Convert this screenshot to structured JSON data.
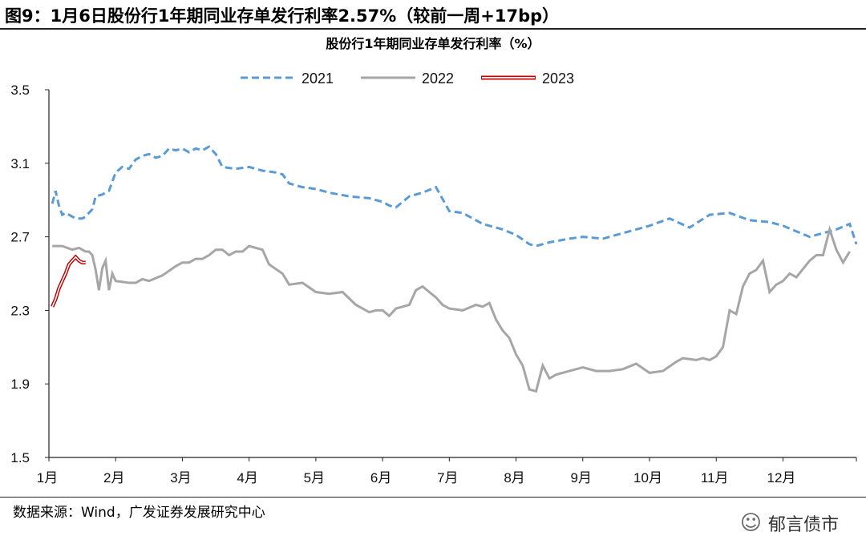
{
  "figure_title": "图9：1月6日股份行1年期同业存单发行利率2.57%（较前一周+17bp）",
  "source": "数据来源：Wind，广发证券发展研究中心",
  "watermark": "郁言债市",
  "watermark_icon": "wechat-icon",
  "chart_data": {
    "type": "line",
    "title": "股份行1年期同业存单发行利率（%）",
    "xlabel": "",
    "ylabel": "",
    "ylim": [
      1.5,
      3.5
    ],
    "yticks": [
      "3.5",
      "3.1",
      "2.7",
      "2.3",
      "1.9",
      "1.5"
    ],
    "ytick_values": [
      3.5,
      3.1,
      2.7,
      2.3,
      1.9,
      1.5
    ],
    "xticks": [
      "1月",
      "2月",
      "3月",
      "4月",
      "5月",
      "6月",
      "7月",
      "8月",
      "9月",
      "10月",
      "11月",
      "12月"
    ],
    "xlim": [
      1,
      13.1
    ],
    "grid": false,
    "legend_position": "top",
    "series": [
      {
        "name": "2021",
        "color": "#5b9bd5",
        "style": "dashed",
        "x": [
          1.05,
          1.1,
          1.15,
          1.2,
          1.25,
          1.3,
          1.4,
          1.5,
          1.55,
          1.6,
          1.65,
          1.7,
          1.8,
          1.9,
          2.0,
          2.1,
          2.2,
          2.3,
          2.4,
          2.5,
          2.6,
          2.7,
          2.8,
          2.9,
          3.0,
          3.1,
          3.2,
          3.3,
          3.4,
          3.5,
          3.6,
          3.8,
          4.0,
          4.2,
          4.4,
          4.5,
          4.6,
          4.8,
          5.0,
          5.2,
          5.5,
          5.8,
          6.0,
          6.1,
          6.2,
          6.4,
          6.6,
          6.8,
          7.0,
          7.2,
          7.5,
          7.8,
          8.0,
          8.2,
          8.3,
          8.5,
          8.8,
          9.0,
          9.3,
          9.5,
          9.8,
          10.0,
          10.3,
          10.6,
          10.9,
          11.2,
          11.5,
          11.8,
          12.0,
          12.2,
          12.4,
          12.6,
          12.8,
          13.0,
          13.1
        ],
        "y": [
          2.88,
          2.95,
          2.87,
          2.82,
          2.83,
          2.82,
          2.8,
          2.8,
          2.81,
          2.83,
          2.85,
          2.92,
          2.93,
          2.95,
          3.05,
          3.08,
          3.07,
          3.12,
          3.14,
          3.15,
          3.13,
          3.14,
          3.18,
          3.17,
          3.18,
          3.16,
          3.18,
          3.17,
          3.19,
          3.15,
          3.08,
          3.07,
          3.08,
          3.06,
          3.05,
          3.04,
          2.99,
          2.97,
          2.96,
          2.94,
          2.92,
          2.91,
          2.89,
          2.87,
          2.86,
          2.92,
          2.94,
          2.97,
          2.84,
          2.83,
          2.77,
          2.74,
          2.71,
          2.66,
          2.65,
          2.67,
          2.69,
          2.7,
          2.69,
          2.71,
          2.74,
          2.76,
          2.8,
          2.75,
          2.82,
          2.83,
          2.79,
          2.78,
          2.76,
          2.73,
          2.7,
          2.72,
          2.74,
          2.77,
          2.66
        ]
      },
      {
        "name": "2022",
        "color": "#a6a6a6",
        "style": "solid",
        "x": [
          1.05,
          1.2,
          1.35,
          1.45,
          1.55,
          1.6,
          1.65,
          1.7,
          1.75,
          1.8,
          1.85,
          1.9,
          1.95,
          2.0,
          2.2,
          2.3,
          2.4,
          2.5,
          2.7,
          2.9,
          3.0,
          3.1,
          3.2,
          3.3,
          3.4,
          3.5,
          3.6,
          3.7,
          3.8,
          3.9,
          4.0,
          4.1,
          4.2,
          4.3,
          4.5,
          4.6,
          4.8,
          5.0,
          5.2,
          5.4,
          5.6,
          5.8,
          5.9,
          6.0,
          6.1,
          6.2,
          6.3,
          6.4,
          6.5,
          6.6,
          6.7,
          6.8,
          6.9,
          7.0,
          7.2,
          7.4,
          7.5,
          7.6,
          7.7,
          7.8,
          7.9,
          8.0,
          8.1,
          8.2,
          8.3,
          8.4,
          8.5,
          8.6,
          8.8,
          9.0,
          9.2,
          9.4,
          9.6,
          9.8,
          10.0,
          10.2,
          10.4,
          10.5,
          10.7,
          10.8,
          10.9,
          11.0,
          11.1,
          11.2,
          11.3,
          11.4,
          11.5,
          11.6,
          11.7,
          11.8,
          11.9,
          12.0,
          12.1,
          12.2,
          12.4,
          12.5,
          12.6,
          12.7,
          12.8,
          12.9,
          13.0
        ],
        "y": [
          2.65,
          2.65,
          2.63,
          2.64,
          2.62,
          2.62,
          2.6,
          2.52,
          2.41,
          2.53,
          2.57,
          2.41,
          2.5,
          2.46,
          2.45,
          2.45,
          2.47,
          2.46,
          2.49,
          2.54,
          2.56,
          2.56,
          2.58,
          2.58,
          2.6,
          2.63,
          2.63,
          2.6,
          2.62,
          2.62,
          2.65,
          2.64,
          2.63,
          2.55,
          2.5,
          2.44,
          2.45,
          2.4,
          2.39,
          2.4,
          2.33,
          2.29,
          2.3,
          2.3,
          2.27,
          2.31,
          2.32,
          2.33,
          2.41,
          2.43,
          2.4,
          2.37,
          2.33,
          2.31,
          2.3,
          2.33,
          2.32,
          2.34,
          2.25,
          2.19,
          2.15,
          2.06,
          2.0,
          1.87,
          1.86,
          2.0,
          1.93,
          1.95,
          1.97,
          1.99,
          1.97,
          1.97,
          1.98,
          2.01,
          1.96,
          1.97,
          2.02,
          2.04,
          2.03,
          2.04,
          2.03,
          2.05,
          2.1,
          2.3,
          2.28,
          2.43,
          2.5,
          2.52,
          2.57,
          2.4,
          2.44,
          2.46,
          2.5,
          2.48,
          2.57,
          2.6,
          2.6,
          2.74,
          2.63,
          2.56,
          2.62
        ]
      },
      {
        "name": "2023",
        "color": "#c00000",
        "style": "double",
        "x": [
          1.05,
          1.1,
          1.15,
          1.2,
          1.25,
          1.3,
          1.35,
          1.4,
          1.45,
          1.5,
          1.55
        ],
        "y": [
          2.32,
          2.36,
          2.42,
          2.46,
          2.5,
          2.55,
          2.57,
          2.59,
          2.57,
          2.56,
          2.56
        ]
      }
    ]
  }
}
